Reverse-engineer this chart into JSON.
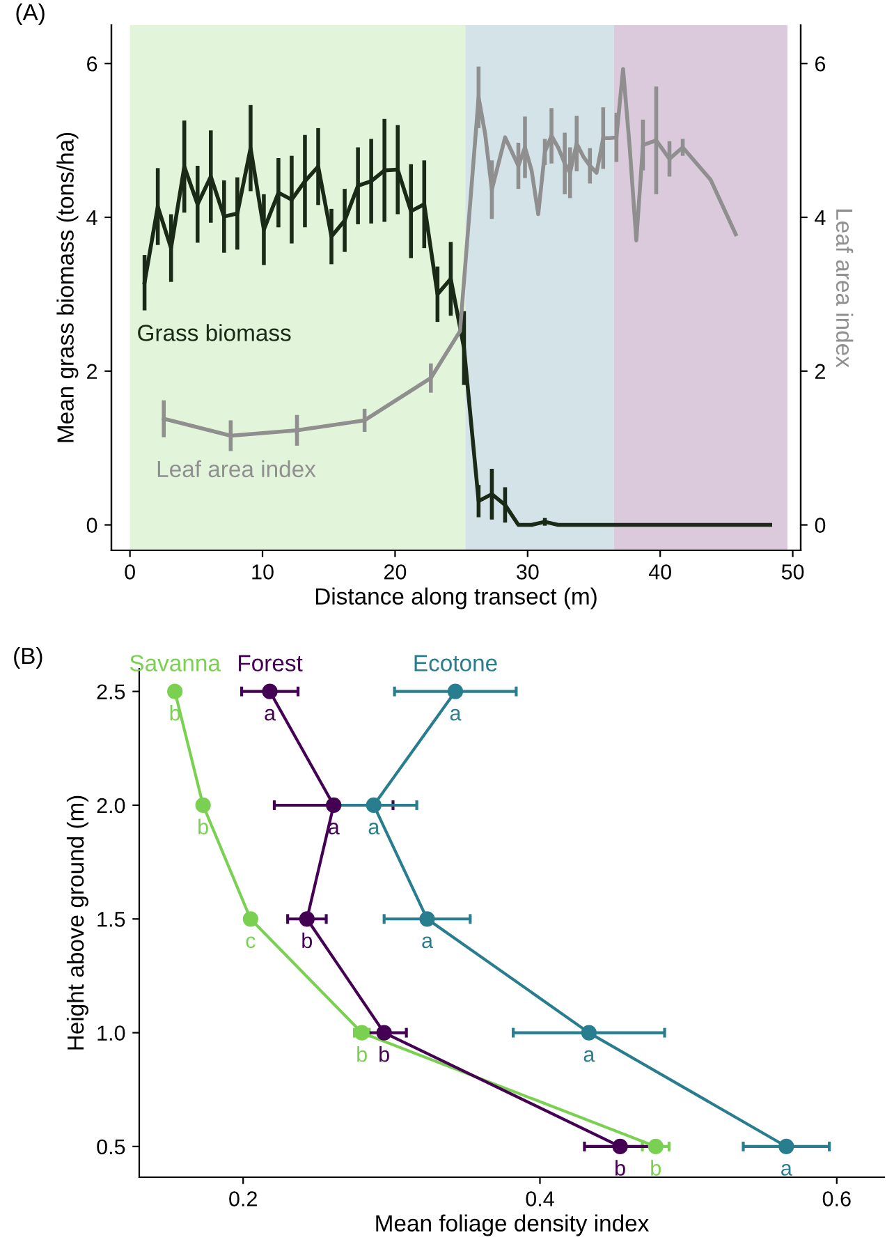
{
  "chart_data": [
    {
      "type": "line",
      "title": "(A)",
      "xlabel": "Distance along transect (m)",
      "ylabel": "Mean grass biomass (tons/ha)",
      "y2label": "Leaf area index",
      "xlim": [
        -1.4,
        50.6
      ],
      "xticks": [
        0,
        10,
        20,
        30,
        40,
        50
      ],
      "ylim": [
        -0.33,
        6.5
      ],
      "yticks": [
        0,
        2,
        4,
        6
      ],
      "y2lim": [
        -0.33,
        6.5
      ],
      "y2ticks": [
        0,
        2,
        4,
        6
      ],
      "bands": [
        {
          "axis": "x",
          "from": 0,
          "to": 25.3,
          "color": "#e2f4da"
        },
        {
          "axis": "x",
          "from": 25.3,
          "to": 36.5,
          "color": "#d4e3e8"
        },
        {
          "axis": "x",
          "from": 36.5,
          "to": 49.6,
          "color": "#dbcadc"
        }
      ],
      "marker": "none",
      "grid": false,
      "legend": false,
      "series": [
        {
          "name": "Grass biomass",
          "color": "#1b2a16",
          "x": [
            1.1,
            2.1,
            3.1,
            4.1,
            5.1,
            6.1,
            7.1,
            8.1,
            9.1,
            10.1,
            11.2,
            12.2,
            13.2,
            14.2,
            15.2,
            16.2,
            17.2,
            18.2,
            19.2,
            20.2,
            21.2,
            22.2,
            23.2,
            24.2,
            25.2,
            26.3,
            27.3,
            28.3,
            29.3,
            30.3,
            31.3,
            32.3,
            33.3,
            34.3,
            35.3,
            36.3,
            37.3,
            38.3,
            39.3,
            40.3,
            41.3,
            42.3,
            43.3,
            44.3,
            45.3,
            46.3,
            47.3,
            48.3
          ],
          "values": [
            3.15,
            4.14,
            3.6,
            4.66,
            4.17,
            4.53,
            4.01,
            4.05,
            4.9,
            3.84,
            4.32,
            4.23,
            4.47,
            4.66,
            3.75,
            3.96,
            4.41,
            4.47,
            4.61,
            4.62,
            4.08,
            4.17,
            3.0,
            3.2,
            2.3,
            0.31,
            0.4,
            0.26,
            0.0,
            0.0,
            0.04,
            0.0,
            0.0,
            0.0,
            0.0,
            0.0,
            0.0,
            0.0,
            0.0,
            0.0,
            0.0,
            0.0,
            0.0,
            0.0,
            0.0,
            0.0,
            0.0,
            0.0
          ],
          "errors": [
            0.36,
            0.5,
            0.44,
            0.6,
            0.5,
            0.6,
            0.47,
            0.47,
            0.56,
            0.46,
            0.45,
            0.57,
            0.6,
            0.5,
            0.36,
            0.41,
            0.5,
            0.55,
            0.67,
            0.58,
            0.61,
            0.57,
            0.36,
            0.48,
            0.48,
            0.21,
            0.33,
            0.23,
            null,
            null,
            0.05,
            null,
            null,
            null,
            null,
            null,
            null,
            null,
            null,
            null,
            null,
            null,
            null,
            null,
            null,
            null,
            null,
            null
          ]
        },
        {
          "name": "Leaf area index",
          "color": "#8f8f8f",
          "axis": "y2",
          "x": [
            2.55,
            7.6,
            12.6,
            17.7,
            22.7,
            24.9,
            26.3,
            26.8,
            27.3,
            28.3,
            29.3,
            29.8,
            30.3,
            30.8,
            31.3,
            31.8,
            32.3,
            32.8,
            33.2,
            33.7,
            34.2,
            34.7,
            35.2,
            35.7,
            36.2,
            36.7,
            37.2,
            37.7,
            38.2,
            38.7,
            39.2,
            39.7,
            40.7,
            41.7,
            43.8,
            45.7
          ],
          "values": [
            1.38,
            1.16,
            1.23,
            1.36,
            1.91,
            2.52,
            5.56,
            5.08,
            4.36,
            5.04,
            4.67,
            4.91,
            4.61,
            4.04,
            4.85,
            5.06,
            4.91,
            4.7,
            4.58,
            4.96,
            4.79,
            4.67,
            4.58,
            5.03,
            5.03,
            5.04,
            5.93,
            4.91,
            3.7,
            4.94,
            4.97,
            5.0,
            4.76,
            4.91,
            4.49,
            3.78
          ],
          "errors": [
            0.24,
            0.2,
            0.2,
            0.15,
            0.19,
            null,
            0.4,
            null,
            0.38,
            null,
            0.3,
            0.4,
            null,
            null,
            0.17,
            0.36,
            null,
            0.4,
            0.33,
            0.36,
            null,
            0.23,
            null,
            0.4,
            null,
            0.32,
            null,
            null,
            null,
            0.33,
            null,
            0.7,
            0.23,
            0.11,
            null,
            null
          ]
        }
      ]
    },
    {
      "type": "line",
      "title": "(B)",
      "xlabel": "Mean foliage density index",
      "ylabel": "Height above ground (m)",
      "xlim": [
        0.13,
        0.632
      ],
      "xticks": [
        0.2,
        0.4,
        0.6
      ],
      "ylim": [
        0.365,
        2.6
      ],
      "yticks": [
        0.5,
        {
          "value": 1,
          "label": "1.0"
        },
        1.5,
        {
          "value": 2,
          "label": "2.0"
        },
        2.5
      ],
      "marker": "circle",
      "grid": false,
      "legend": false,
      "series": [
        {
          "name": "Savanna",
          "color": "#7ad151",
          "x": [
            0.154,
            0.173,
            0.205,
            0.28,
            0.478
          ],
          "values": [
            2.5,
            2.0,
            1.5,
            1.0,
            0.5
          ],
          "xerrors": [
            null,
            null,
            null,
            0.005,
            0.009
          ],
          "value_labels": [
            "b",
            "b",
            "c",
            "b",
            "b"
          ]
        },
        {
          "name": "Forest",
          "color": "#440154",
          "x": [
            0.218,
            0.261,
            0.243,
            0.295,
            0.454
          ],
          "values": [
            2.5,
            2.0,
            1.5,
            1.0,
            0.5
          ],
          "xerrors": [
            0.019,
            0.04,
            0.013,
            0.015,
            0.024
          ],
          "value_labels": [
            "a",
            "a",
            "b",
            "b",
            "b"
          ]
        },
        {
          "name": "Ecotone",
          "color": "#287d8e",
          "x": [
            0.343,
            0.288,
            0.324,
            0.433,
            0.566
          ],
          "values": [
            2.5,
            2.0,
            1.5,
            1.0,
            0.5
          ],
          "xerrors": [
            0.041,
            0.029,
            0.029,
            0.051,
            0.029
          ],
          "value_labels": [
            "a",
            "a",
            "a",
            "a",
            "a"
          ]
        }
      ]
    }
  ]
}
